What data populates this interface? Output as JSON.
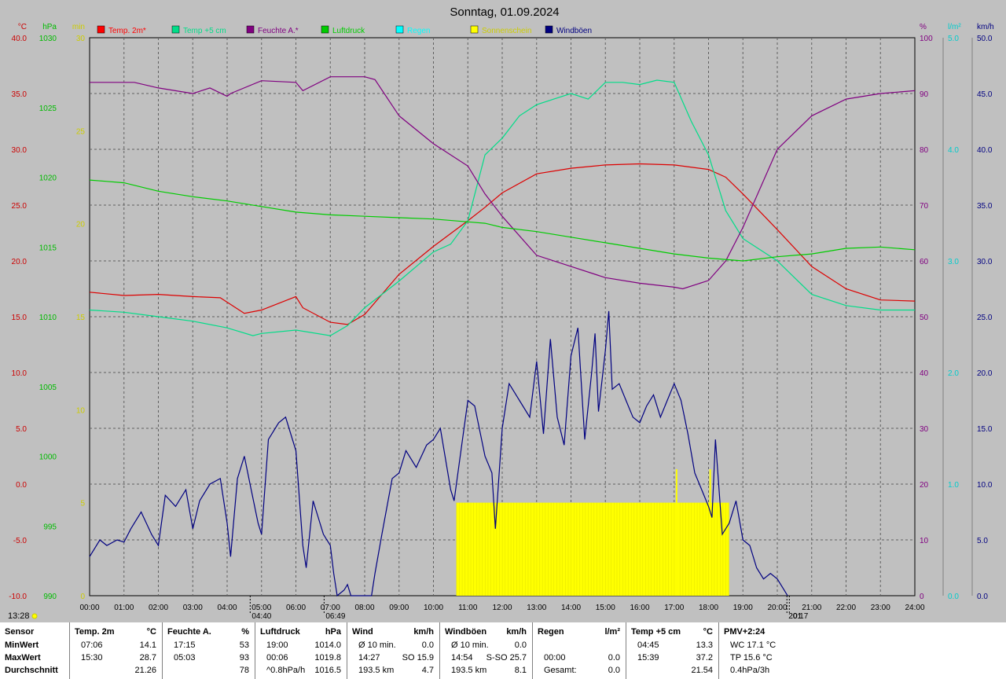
{
  "chart_data": {
    "type": "line",
    "title": "Sonntag, 01.09.2024",
    "x_ticks": [
      "00:00",
      "01:00",
      "02:00",
      "03:00",
      "04:00",
      "05:00",
      "06:00",
      "07:00",
      "08:00",
      "09:00",
      "10:00",
      "11:00",
      "12:00",
      "13:00",
      "14:00",
      "15:00",
      "16:00",
      "17:00",
      "18:00",
      "19:00",
      "20:00",
      "21:00",
      "22:00",
      "23:00",
      "24:00"
    ],
    "axes": {
      "temp": {
        "unit": "°C",
        "min": -10,
        "max": 40,
        "ticks": [
          "40.0",
          "35.0",
          "30.0",
          "25.0",
          "20.0",
          "15.0",
          "10.0",
          "5.0",
          "0.0",
          "-5.0",
          "-10.0"
        ],
        "color": "#cc0000"
      },
      "pressure": {
        "unit": "hPa",
        "min": 990,
        "max": 1030,
        "ticks": [
          "1030",
          "1025",
          "1020",
          "1015",
          "1010",
          "1005",
          "1000",
          "995",
          "990"
        ],
        "color": "#00bb00"
      },
      "sunshine_min": {
        "unit": "min",
        "min": 0,
        "max": 30,
        "ticks": [
          "30",
          "25",
          "20",
          "15",
          "10",
          "5",
          "0"
        ],
        "color": "#cccc00"
      },
      "humidity": {
        "unit": "%",
        "min": 0,
        "max": 100,
        "ticks": [
          "100",
          "90",
          "80",
          "70",
          "60",
          "50",
          "40",
          "30",
          "20",
          "10",
          "0"
        ],
        "color": "#800080"
      },
      "rain": {
        "unit": "l/m²",
        "min": 0,
        "max": 5,
        "ticks": [
          "5.0",
          "4.0",
          "3.0",
          "2.0",
          "1.0",
          "0.0"
        ],
        "color": "#00cccc"
      },
      "wind": {
        "unit": "km/h",
        "min": 0,
        "max": 50,
        "ticks": [
          "50.0",
          "45.0",
          "40.0",
          "35.0",
          "30.0",
          "25.0",
          "20.0",
          "15.0",
          "10.0",
          "5.0",
          "0.0"
        ],
        "color": "#000080"
      }
    },
    "legend": [
      {
        "name": "Temp. 2m*",
        "color": "#ff0000"
      },
      {
        "name": "Temp +5 cm",
        "color": "#00dd88"
      },
      {
        "name": "Feuchte A.*",
        "color": "#800080"
      },
      {
        "name": "Luftdruck",
        "color": "#00cc00"
      },
      {
        "name": "Regen",
        "color": "#00ffff"
      },
      {
        "name": "Sonnenschein",
        "color": "#ffff00"
      },
      {
        "name": "Windböen",
        "color": "#000080"
      }
    ],
    "series": [
      {
        "name": "Temp. 2m*",
        "axis": "temp",
        "color": "#dd0000",
        "x": [
          0,
          1,
          2,
          3,
          3.8,
          4,
          4.5,
          5,
          6,
          6.2,
          7,
          7.5,
          8,
          9,
          10,
          11,
          11.5,
          12,
          13,
          14,
          15,
          16,
          17,
          18,
          18.5,
          19,
          20,
          21,
          22,
          23,
          24
        ],
        "y": [
          17.2,
          16.9,
          17.0,
          16.8,
          16.7,
          16.3,
          15.3,
          15.6,
          16.8,
          15.8,
          14.5,
          14.3,
          15.2,
          18.8,
          21.3,
          23.6,
          24.8,
          26.1,
          27.8,
          28.3,
          28.6,
          28.7,
          28.6,
          28.2,
          27.5,
          26.0,
          22.8,
          19.5,
          17.5,
          16.5,
          16.4
        ]
      },
      {
        "name": "Temp +5 cm",
        "axis": "temp",
        "color": "#00dd88",
        "x": [
          0,
          1,
          2,
          3,
          4,
          4.75,
          5,
          6,
          7,
          7.5,
          8,
          9,
          10,
          10.5,
          11,
          11.5,
          12,
          12.5,
          13,
          13.5,
          14,
          14.5,
          15,
          15.5,
          16,
          16.5,
          17,
          17.5,
          18,
          18.5,
          19,
          19.5,
          20,
          20.5,
          21,
          22,
          23,
          24
        ],
        "y": [
          15.6,
          15.4,
          15.0,
          14.6,
          14.0,
          13.3,
          13.5,
          13.8,
          13.3,
          14.2,
          15.8,
          18.2,
          20.8,
          21.5,
          23.6,
          29.5,
          31.0,
          33.0,
          34.0,
          34.5,
          35.0,
          34.5,
          36.0,
          36.0,
          35.8,
          36.2,
          36.0,
          32.5,
          29.5,
          24.5,
          22.0,
          21.0,
          20.0,
          18.5,
          17.0,
          16.0,
          15.6,
          15.6
        ]
      },
      {
        "name": "Feuchte A.*",
        "axis": "humidity",
        "color": "#800080",
        "x": [
          0,
          1,
          1.3,
          2,
          3,
          3.5,
          4,
          4.1,
          5,
          6,
          6.2,
          7,
          8,
          8.3,
          9,
          10,
          11,
          11.5,
          12,
          13,
          14,
          15,
          16,
          17,
          17.25,
          18,
          18.5,
          19,
          20,
          21,
          22,
          23,
          24
        ],
        "y": [
          92,
          92,
          92,
          91,
          90,
          91,
          89.5,
          90,
          92.3,
          92,
          90.5,
          93,
          93,
          92.5,
          86,
          81,
          77,
          72,
          68,
          61,
          59,
          57,
          56,
          55.3,
          55,
          56.5,
          60,
          66,
          80,
          86,
          89,
          90,
          90.5
        ]
      },
      {
        "name": "Luftdruck",
        "axis": "pressure",
        "color": "#00cc00",
        "x": [
          0,
          0.5,
          1,
          2,
          3,
          4,
          5,
          6,
          7,
          8,
          9,
          10,
          11,
          11.5,
          12,
          13,
          14,
          15,
          16,
          17,
          18,
          19,
          20,
          21,
          22,
          23,
          24
        ],
        "y": [
          1019.8,
          1019.7,
          1019.6,
          1019.0,
          1018.6,
          1018.3,
          1017.9,
          1017.5,
          1017.3,
          1017.2,
          1017.1,
          1017.0,
          1016.8,
          1016.7,
          1016.4,
          1016.1,
          1015.7,
          1015.3,
          1014.9,
          1014.5,
          1014.2,
          1014.0,
          1014.3,
          1014.5,
          1014.9,
          1015.0,
          1014.8
        ]
      },
      {
        "name": "Windböen",
        "axis": "wind",
        "color": "#000080",
        "x": [
          0,
          0.3,
          0.5,
          0.8,
          1,
          1.2,
          1.5,
          1.8,
          2,
          2.2,
          2.5,
          2.8,
          3,
          3.2,
          3.5,
          3.8,
          4,
          4.1,
          4.3,
          4.5,
          4.7,
          4.9,
          5,
          5.2,
          5.5,
          5.7,
          5.9,
          6,
          6.2,
          6.3,
          6.5,
          6.8,
          7,
          7.1,
          7.2,
          7.4,
          7.5,
          7.6,
          7.8,
          8,
          8.2,
          8.3,
          8.5,
          8.8,
          9,
          9.2,
          9.5,
          9.8,
          10,
          10.2,
          10.5,
          10.6,
          10.8,
          11,
          11.2,
          11.5,
          11.7,
          11.8,
          12,
          12.2,
          12.5,
          12.8,
          13,
          13.2,
          13.4,
          13.6,
          13.8,
          14,
          14.2,
          14.4,
          14.6,
          14.7,
          14.8,
          15,
          15.1,
          15.2,
          15.4,
          15.6,
          15.8,
          16,
          16.2,
          16.4,
          16.6,
          16.8,
          17,
          17.2,
          17.4,
          17.6,
          17.8,
          18,
          18.1,
          18.2,
          18.4,
          18.6,
          18.8,
          19,
          19.2,
          19.4,
          19.6,
          19.8,
          20,
          20.2,
          20.3
        ],
        "y": [
          3.5,
          5.0,
          4.5,
          5.0,
          4.8,
          6.0,
          7.5,
          5.5,
          4.5,
          9.0,
          8.0,
          9.5,
          6.0,
          8.5,
          10.0,
          10.5,
          6.5,
          3.5,
          10.5,
          12.5,
          9.5,
          6.5,
          5.5,
          14.0,
          15.5,
          16.0,
          14.0,
          13.0,
          4.5,
          2.5,
          8.5,
          5.5,
          4.5,
          2.0,
          0.0,
          0.5,
          1.0,
          0.0,
          0.0,
          0.0,
          0.0,
          2.0,
          5.5,
          10.5,
          11.0,
          13.0,
          11.5,
          13.5,
          14.0,
          15.0,
          9.5,
          8.5,
          13.0,
          17.5,
          17.0,
          12.5,
          11.0,
          6.0,
          15.0,
          19.0,
          17.5,
          16.0,
          21.0,
          14.5,
          23.0,
          16.0,
          13.5,
          21.5,
          24.0,
          14.0,
          20.0,
          23.5,
          16.5,
          22.0,
          25.5,
          18.5,
          19.0,
          17.5,
          16.0,
          15.5,
          17.0,
          18.0,
          16.0,
          17.5,
          19.0,
          17.5,
          14.5,
          11.0,
          9.5,
          8.0,
          7.0,
          14.0,
          5.5,
          6.5,
          8.5,
          5.0,
          4.5,
          2.5,
          1.5,
          2.0,
          1.5,
          0.5,
          0.0
        ]
      }
    ],
    "sunshine_bars": {
      "start": 10.67,
      "end": 18.6,
      "value": 5,
      "spikes": [
        {
          "x": 17.07,
          "value": 6.8
        },
        {
          "x": 18.05,
          "value": 6.8
        }
      ]
    },
    "markers": [
      {
        "label": "04:40",
        "x": 4.67
      },
      {
        "label": "06:49",
        "x": 6.82
      },
      {
        "label": "20:17",
        "x": 20.28
      },
      {
        "label": ":01",
        "x": 20.35
      }
    ],
    "time_stamp": "13:28"
  },
  "stats": {
    "columns": [
      {
        "header": "Sensor",
        "unit": "",
        "rows": [
          {
            "a": "MinWert",
            "b": ""
          },
          {
            "a": "MaxWert",
            "b": ""
          },
          {
            "a": "Durchschnitt",
            "b": ""
          }
        ]
      },
      {
        "header": "Temp. 2m",
        "unit": "°C",
        "rows": [
          {
            "a": "07:06",
            "b": "14.1"
          },
          {
            "a": "15:30",
            "b": "28.7"
          },
          {
            "a": "",
            "b": "21.26"
          }
        ]
      },
      {
        "header": "Feuchte A.",
        "unit": "%",
        "rows": [
          {
            "a": "17:15",
            "b": "53"
          },
          {
            "a": "05:03",
            "b": "93"
          },
          {
            "a": "",
            "b": "78"
          }
        ]
      },
      {
        "header": "Luftdruck",
        "unit": "hPa",
        "rows": [
          {
            "a": "19:00",
            "b": "1014.0"
          },
          {
            "a": "00:06",
            "b": "1019.8"
          },
          {
            "a": "^0.8hPa/h",
            "b": "1016.5"
          }
        ]
      },
      {
        "header": "Wind",
        "unit": "km/h",
        "rows": [
          {
            "a": "Ø 10 min.",
            "b": "0.0"
          },
          {
            "a": "14:27",
            "b": "SO 15.9"
          },
          {
            "a": "193.5 km",
            "b": "4.7"
          }
        ]
      },
      {
        "header": "Windböen",
        "unit": "km/h",
        "rows": [
          {
            "a": "Ø 10 min.",
            "b": "0.0"
          },
          {
            "a": "14:54",
            "b": "S-SO 25.7"
          },
          {
            "a": "193.5 km",
            "b": "8.1"
          }
        ]
      },
      {
        "header": "Regen",
        "unit": "l/m²",
        "rows": [
          {
            "a": "",
            "b": ""
          },
          {
            "a": "00:00",
            "b": "0.0"
          },
          {
            "a": "Gesamt:",
            "b": "0.0"
          }
        ]
      },
      {
        "header": "Temp +5 cm",
        "unit": "°C",
        "rows": [
          {
            "a": "04:45",
            "b": "13.3"
          },
          {
            "a": "15:39",
            "b": "37.2"
          },
          {
            "a": "",
            "b": "21.54"
          }
        ]
      },
      {
        "header": "PMV+2:24",
        "unit": "",
        "rows": [
          {
            "a": "WC 17.1 °C",
            "b": ""
          },
          {
            "a": "TP 15.6 °C",
            "b": ""
          },
          {
            "a": "0.4hPa/3h",
            "b": ""
          }
        ]
      }
    ]
  }
}
